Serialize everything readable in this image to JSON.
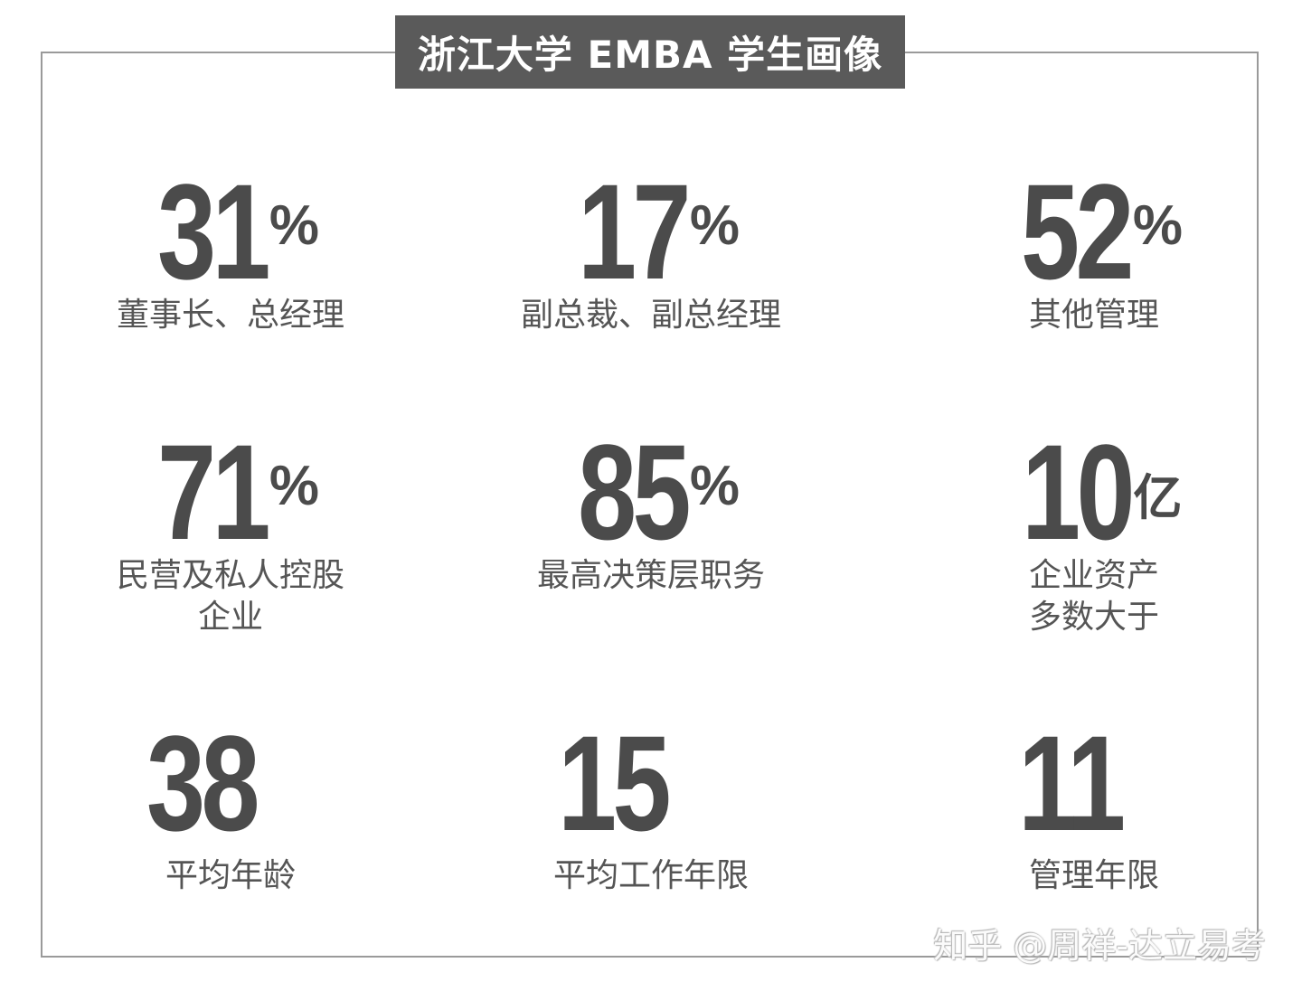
{
  "title": "浙江大学 EMBA 学生画像",
  "stats": [
    {
      "value": "31",
      "unit": "%",
      "label": "董事长、总经理"
    },
    {
      "value": "17",
      "unit": "%",
      "label": "副总裁、副总经理"
    },
    {
      "value": "52",
      "unit": "%",
      "label": "其他管理"
    },
    {
      "value": "71",
      "unit": "%",
      "label_line1": "民营及私人控股",
      "label_line2": "企业"
    },
    {
      "value": "85",
      "unit": "%",
      "label": "最高决策层职务"
    },
    {
      "value": "10",
      "unit": "亿",
      "label_line1": "企业资产",
      "label_line2": "多数大于"
    },
    {
      "value": "38",
      "label": "平均年龄"
    },
    {
      "value": "15",
      "label": "平均工作年限"
    },
    {
      "value": "11",
      "label": "管理年限"
    }
  ],
  "watermark": "知乎 @周祥-达立易考"
}
